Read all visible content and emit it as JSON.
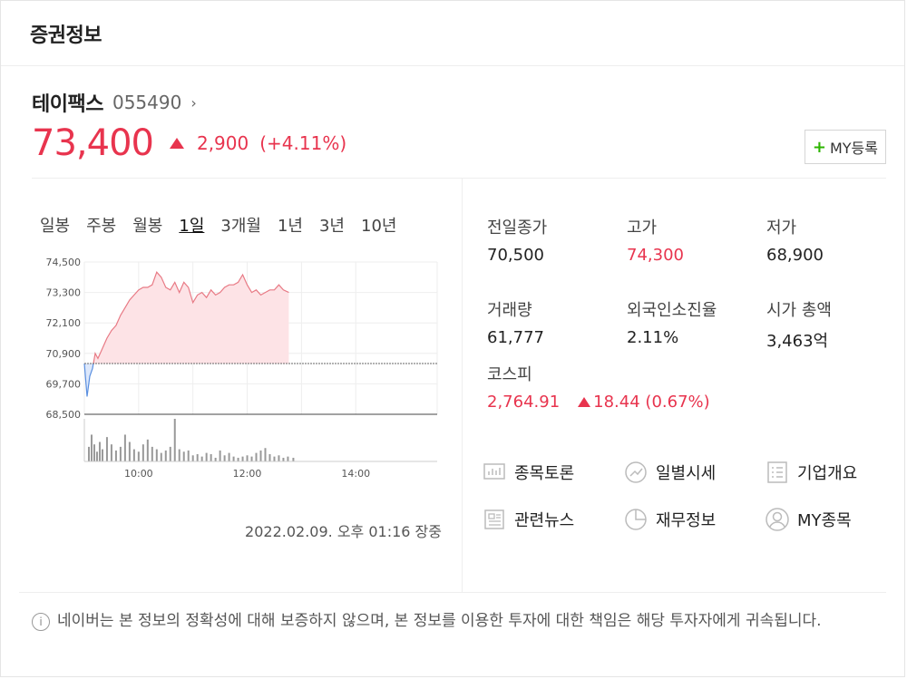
{
  "header": {
    "title": "증권정보"
  },
  "stock": {
    "name": "테이팩스",
    "code": "055490",
    "price": "73,400",
    "change": "2,900",
    "rate": "(+4.11%)",
    "my_button": "MY등록",
    "color_up": "#e8344e"
  },
  "tabs": [
    "일봉",
    "주봉",
    "월봉",
    "1일",
    "3개월",
    "1년",
    "3년",
    "10년"
  ],
  "active_tab": "1일",
  "timestamp": "2022.02.09. 오후 01:16 장중",
  "stats": [
    {
      "label": "전일종가",
      "value": "70,500",
      "color": "normal"
    },
    {
      "label": "고가",
      "value": "74,300",
      "color": "red"
    },
    {
      "label": "저가",
      "value": "68,900",
      "color": "normal"
    },
    {
      "label": "거래량",
      "value": "61,777",
      "color": "normal"
    },
    {
      "label": "외국인소진율",
      "value": "2.11%",
      "color": "normal"
    },
    {
      "label": "시가 총액",
      "value": "3,463억",
      "color": "normal"
    }
  ],
  "kospi": {
    "label": "코스피",
    "value": "2,764.91",
    "change": "18.44",
    "rate": "(0.67%)"
  },
  "links": [
    {
      "label": "종목토론",
      "icon": "discussion-icon"
    },
    {
      "label": "일별시세",
      "icon": "trend-icon"
    },
    {
      "label": "기업개요",
      "icon": "list-icon"
    },
    {
      "label": "관련뉴스",
      "icon": "news-icon"
    },
    {
      "label": "재무정보",
      "icon": "pie-icon"
    },
    {
      "label": "MY종목",
      "icon": "user-icon"
    }
  ],
  "notice": "네이버는 본 정보의 정확성에 대해 보증하지 않으며, 본 정보를 이용한 투자에 대한 책임은 해당 투자자에게 귀속됩니다.",
  "chart_data": {
    "type": "area",
    "y_ticks": [
      "74,500",
      "73,300",
      "72,100",
      "70,900",
      "69,700",
      "68,500"
    ],
    "ylim": [
      68500,
      74500
    ],
    "x_ticks": [
      "10:00",
      "12:00",
      "14:00"
    ],
    "reference_line": 70500,
    "x_minutes": [
      0,
      3,
      6,
      9,
      12,
      15,
      20,
      25,
      30,
      35,
      40,
      45,
      50,
      55,
      60,
      65,
      70,
      75,
      80,
      85,
      90,
      95,
      100,
      105,
      110,
      115,
      120,
      125,
      130,
      135,
      140,
      145,
      150,
      155,
      160,
      165,
      170,
      175,
      180,
      185,
      190,
      195,
      200,
      205,
      210,
      215,
      220,
      226
    ],
    "prices": [
      70500,
      69200,
      70000,
      70300,
      70900,
      70700,
      71100,
      71500,
      71800,
      72000,
      72400,
      72700,
      73000,
      73200,
      73400,
      73500,
      73500,
      73600,
      74100,
      73900,
      73500,
      73400,
      73700,
      73300,
      73700,
      73500,
      72900,
      73200,
      73300,
      73100,
      73400,
      73200,
      73300,
      73500,
      73600,
      73600,
      73700,
      74000,
      73600,
      73300,
      73400,
      73200,
      73300,
      73400,
      73400,
      73600,
      73400,
      73300
    ],
    "volumes": [
      12,
      22,
      14,
      8,
      16,
      10,
      20,
      14,
      9,
      12,
      22,
      16,
      10,
      8,
      14,
      18,
      12,
      10,
      7,
      9,
      12,
      35,
      10,
      8,
      9,
      5,
      6,
      4,
      7,
      6,
      3,
      9,
      5,
      7,
      4,
      3,
      4,
      5,
      4,
      7,
      9,
      11,
      6,
      4,
      5,
      3,
      4,
      3
    ]
  }
}
